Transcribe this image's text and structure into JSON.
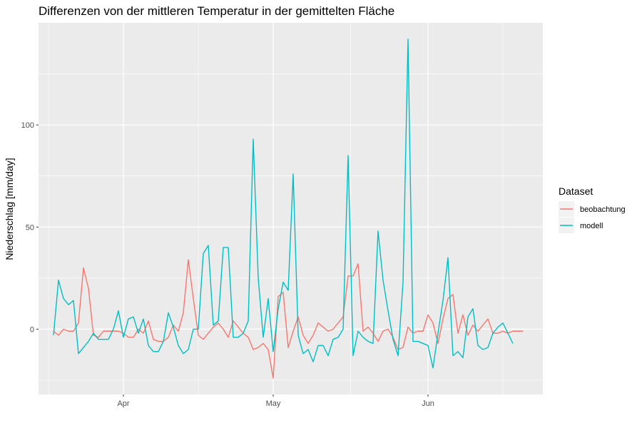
{
  "chart_data": {
    "type": "line",
    "title": "Differenzen von der mittleren Temperatur in der gemittelten Fläche",
    "xlabel": "",
    "ylabel": "Niederschlag [mm/day]",
    "x_type": "date",
    "x_ticks": [
      {
        "date": "2000-04-01",
        "label": "Apr"
      },
      {
        "date": "2000-05-01",
        "label": "May"
      },
      {
        "date": "2000-06-01",
        "label": "Jun"
      }
    ],
    "y_ticks": [
      0,
      50,
      100
    ],
    "xlim": [
      "2000-03-15",
      "2000-06-24"
    ],
    "ylim": [
      -32,
      150
    ],
    "grid": true,
    "legend": {
      "title": "Dataset",
      "position": "right"
    },
    "series": [
      {
        "name": "beobachtung",
        "color": "#F8766D",
        "x": [
          "2000-03-18",
          "2000-03-19",
          "2000-03-20",
          "2000-03-21",
          "2000-03-22",
          "2000-03-23",
          "2000-03-24",
          "2000-03-25",
          "2000-03-26",
          "2000-03-27",
          "2000-03-28",
          "2000-03-29",
          "2000-03-30",
          "2000-03-31",
          "2000-04-01",
          "2000-04-02",
          "2000-04-03",
          "2000-04-04",
          "2000-04-05",
          "2000-04-06",
          "2000-04-07",
          "2000-04-08",
          "2000-04-09",
          "2000-04-10",
          "2000-04-11",
          "2000-04-12",
          "2000-04-13",
          "2000-04-14",
          "2000-04-15",
          "2000-04-16",
          "2000-04-17",
          "2000-04-18",
          "2000-04-19",
          "2000-04-20",
          "2000-04-21",
          "2000-04-22",
          "2000-04-23",
          "2000-04-24",
          "2000-04-25",
          "2000-04-26",
          "2000-04-27",
          "2000-04-28",
          "2000-04-29",
          "2000-04-30",
          "2000-05-01",
          "2000-05-02",
          "2000-05-03",
          "2000-05-04",
          "2000-05-05",
          "2000-05-06",
          "2000-05-07",
          "2000-05-08",
          "2000-05-09",
          "2000-05-10",
          "2000-05-11",
          "2000-05-12",
          "2000-05-13",
          "2000-05-14",
          "2000-05-15",
          "2000-05-16",
          "2000-05-17",
          "2000-05-18",
          "2000-05-19",
          "2000-05-20",
          "2000-05-21",
          "2000-05-22",
          "2000-05-23",
          "2000-05-24",
          "2000-05-25",
          "2000-05-26",
          "2000-05-27",
          "2000-05-28",
          "2000-05-29",
          "2000-05-30",
          "2000-05-31",
          "2000-06-01",
          "2000-06-02",
          "2000-06-03",
          "2000-06-04",
          "2000-06-05",
          "2000-06-06",
          "2000-06-07",
          "2000-06-08",
          "2000-06-09",
          "2000-06-10",
          "2000-06-11",
          "2000-06-12",
          "2000-06-13",
          "2000-06-14",
          "2000-06-15",
          "2000-06-16",
          "2000-06-17",
          "2000-06-18",
          "2000-06-19",
          "2000-06-20"
        ],
        "values": [
          -1,
          -3,
          0,
          -1,
          -1,
          3,
          30,
          20,
          -3,
          -4,
          -1,
          -1,
          -1,
          -1,
          -2,
          -4,
          -4,
          0,
          -2,
          4,
          -5,
          -6,
          -6,
          -4,
          2,
          -1,
          8,
          34,
          15,
          -3,
          -5,
          -2,
          1,
          3,
          0,
          -4,
          4,
          1,
          -2,
          -4,
          -10,
          -9,
          -7,
          -10,
          -24,
          16,
          18,
          -9,
          -1,
          6,
          -3,
          -7,
          -3,
          3,
          1,
          -1,
          0,
          3,
          6,
          26,
          26,
          32,
          -1,
          1,
          -2,
          -6,
          -1,
          0,
          -4,
          -10,
          -9,
          1,
          -2,
          -1,
          -1,
          7,
          3,
          -7,
          5,
          15,
          17,
          -2,
          7,
          -3,
          2,
          -1,
          2,
          5,
          -2,
          -2,
          -1,
          -2,
          -1,
          -1,
          -1
        ],
        "markers": false
      },
      {
        "name": "modell",
        "color": "#00BFC4",
        "x": [
          "2000-03-18",
          "2000-03-19",
          "2000-03-20",
          "2000-03-21",
          "2000-03-22",
          "2000-03-23",
          "2000-03-24",
          "2000-03-25",
          "2000-03-26",
          "2000-03-27",
          "2000-03-28",
          "2000-03-29",
          "2000-03-30",
          "2000-03-31",
          "2000-04-01",
          "2000-04-02",
          "2000-04-03",
          "2000-04-04",
          "2000-04-05",
          "2000-04-06",
          "2000-04-07",
          "2000-04-08",
          "2000-04-09",
          "2000-04-10",
          "2000-04-11",
          "2000-04-12",
          "2000-04-13",
          "2000-04-14",
          "2000-04-15",
          "2000-04-16",
          "2000-04-17",
          "2000-04-18",
          "2000-04-19",
          "2000-04-20",
          "2000-04-21",
          "2000-04-22",
          "2000-04-23",
          "2000-04-24",
          "2000-04-25",
          "2000-04-26",
          "2000-04-27",
          "2000-04-28",
          "2000-04-29",
          "2000-04-30",
          "2000-05-01",
          "2000-05-02",
          "2000-05-03",
          "2000-05-04",
          "2000-05-05",
          "2000-05-06",
          "2000-05-07",
          "2000-05-08",
          "2000-05-09",
          "2000-05-10",
          "2000-05-11",
          "2000-05-12",
          "2000-05-13",
          "2000-05-14",
          "2000-05-15",
          "2000-05-16",
          "2000-05-17",
          "2000-05-18",
          "2000-05-19",
          "2000-05-20",
          "2000-05-21",
          "2000-05-22",
          "2000-05-23",
          "2000-05-24",
          "2000-05-25",
          "2000-05-26",
          "2000-05-27",
          "2000-05-28",
          "2000-05-29",
          "2000-05-30",
          "2000-05-31",
          "2000-06-01",
          "2000-06-02",
          "2000-06-03",
          "2000-06-04",
          "2000-06-05",
          "2000-06-06",
          "2000-06-07",
          "2000-06-08",
          "2000-06-09",
          "2000-06-10",
          "2000-06-11",
          "2000-06-12",
          "2000-06-13",
          "2000-06-14",
          "2000-06-15",
          "2000-06-16",
          "2000-06-17",
          "2000-06-18",
          "2000-06-19",
          "2000-06-20"
        ],
        "values": [
          -3,
          24,
          15,
          12,
          14,
          -12,
          -9,
          -6,
          -2,
          -5,
          -5,
          -5,
          0,
          9,
          -4,
          5,
          6,
          -2,
          5,
          -8,
          -11,
          -11,
          -6,
          8,
          1,
          -8,
          -12,
          -10,
          0,
          0,
          37,
          41,
          2,
          4,
          40,
          40,
          -4,
          -4,
          -2,
          4,
          93,
          25,
          -4,
          15,
          -11,
          10,
          23,
          19,
          76,
          -3,
          -12,
          -10,
          -16,
          -8,
          -8,
          -13,
          -5,
          -4,
          0,
          85,
          -13,
          -1,
          -4,
          -6,
          -7,
          48,
          24,
          9,
          -5,
          -13,
          23,
          142,
          -6,
          -6,
          -7,
          -8,
          -19,
          -2,
          14,
          35,
          -13,
          -11,
          -14,
          6,
          10,
          -8,
          -10,
          -9,
          -2,
          1,
          3,
          -2,
          -7,
          null,
          null
        ],
        "markers": false
      }
    ]
  }
}
